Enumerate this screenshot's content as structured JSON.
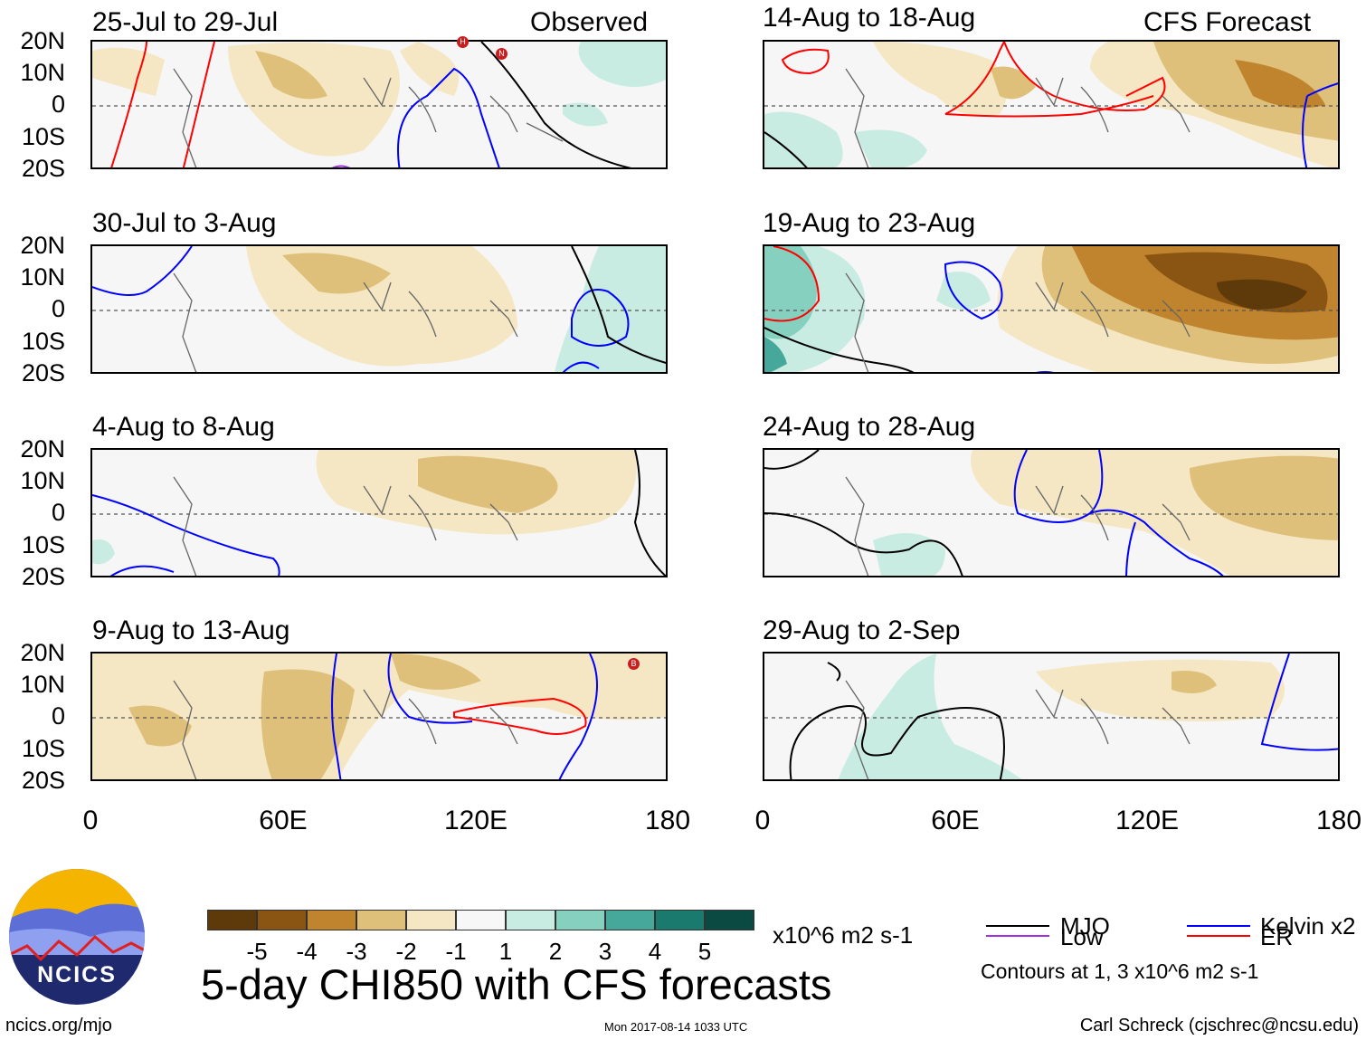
{
  "title": "5-day CHI850 with CFS forecasts",
  "corner_labels": {
    "left": "Observed",
    "right": "CFS Forecast"
  },
  "panels_left": [
    {
      "period": "25-Jul to 29-Jul"
    },
    {
      "period": "30-Jul to 3-Aug"
    },
    {
      "period": "4-Aug to 8-Aug"
    },
    {
      "period": "9-Aug to 13-Aug"
    }
  ],
  "panels_right": [
    {
      "period": "14-Aug to 18-Aug"
    },
    {
      "period": "19-Aug to 23-Aug"
    },
    {
      "period": "24-Aug to 28-Aug"
    },
    {
      "period": "29-Aug to 2-Sep"
    }
  ],
  "lat_ticks": [
    "20N",
    "10N",
    "0",
    "10S",
    "20S"
  ],
  "lon_ticks": [
    "0",
    "60E",
    "120E",
    "180"
  ],
  "colorbar": {
    "colors": [
      "#5e3a0a",
      "#8a5512",
      "#c0842e",
      "#dfc07a",
      "#f5e7c4",
      "#f7f7f7",
      "#c9ece2",
      "#86d0c0",
      "#46a89a",
      "#1b7a6e",
      "#0b4a42"
    ],
    "labels": [
      "-5",
      "-4",
      "-3",
      "-2",
      "-1",
      "1",
      "2",
      "3",
      "4",
      "5"
    ],
    "units": "x10^6 m2 s-1"
  },
  "legend": {
    "items": [
      {
        "label": "MJO",
        "color": "#000000"
      },
      {
        "label": "Kelvin x2",
        "color": "#0000ff"
      },
      {
        "label": "Low",
        "color": "#a030e0"
      },
      {
        "label": "ER",
        "color": "#ff0000"
      }
    ],
    "contours_note": "Contours at 1, 3 x10^6 m2 s-1"
  },
  "logo": {
    "text": "NCICS"
  },
  "footer": {
    "left": "ncics.org/mjo",
    "center": "Mon 2017-08-14 1033 UTC",
    "right": "Carl Schreck (cjschrec@ncsu.edu)"
  },
  "storm_markers": [
    "H",
    "N",
    "B"
  ]
}
